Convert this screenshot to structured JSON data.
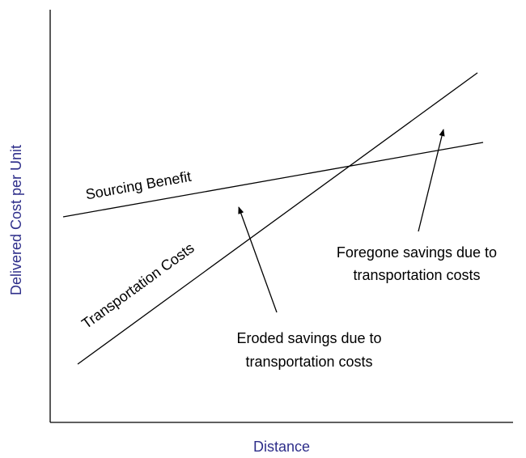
{
  "axes": {
    "x_label": "Distance",
    "y_label": "Delivered Cost per Unit"
  },
  "lines": [
    {
      "label": "Sourcing Benefit"
    },
    {
      "label": "Transportation Costs"
    }
  ],
  "annotations": [
    {
      "lines": [
        "Foregone savings due to",
        "transportation costs"
      ]
    },
    {
      "lines": [
        "Eroded savings due to",
        "transportation costs"
      ]
    }
  ]
}
